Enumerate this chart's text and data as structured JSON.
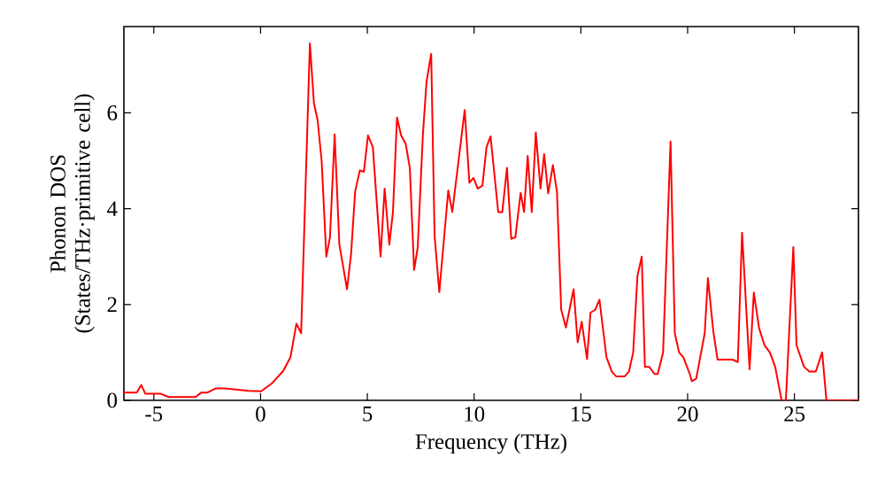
{
  "chart_data": {
    "type": "line",
    "xlabel": "Frequency (THz)",
    "ylabel": "Phonon DOS (States/THz·primitive cell)",
    "xlim": [
      -6.4,
      28
    ],
    "ylim": [
      0,
      7.8
    ],
    "xticks": [
      -5,
      0,
      5,
      10,
      15,
      20,
      25
    ],
    "yticks": [
      0,
      2,
      4,
      6
    ],
    "series": [
      {
        "color": "#ff0000",
        "x": [
          -6.4,
          -6.23,
          -5.8,
          -5.59,
          -5.4,
          -4.7,
          -4.3,
          -3.05,
          -2.78,
          -2.5,
          -2.09,
          -1.68,
          -0.58,
          0.03,
          0.52,
          1.07,
          1.4,
          1.68,
          1.9,
          2.31,
          2.5,
          2.67,
          2.86,
          3.08,
          3.25,
          3.47,
          3.69,
          4.05,
          4.24,
          4.43,
          4.65,
          4.84,
          5.03,
          5.2,
          5.26,
          5.62,
          5.81,
          6.03,
          6.2,
          6.39,
          6.58,
          6.8,
          6.99,
          7.19,
          7.36,
          7.6,
          7.77,
          7.99,
          8.15,
          8.37,
          8.79,
          8.98,
          9.56,
          9.78,
          9.97,
          10.17,
          10.39,
          10.58,
          10.77,
          11.13,
          11.32,
          11.54,
          11.74,
          11.93,
          12.18,
          12.34,
          12.51,
          12.7,
          12.89,
          13.11,
          13.28,
          13.47,
          13.69,
          13.88,
          14.08,
          14.3,
          14.66,
          14.85,
          15.04,
          15.29,
          15.45,
          15.67,
          15.87,
          16.2,
          16.45,
          16.65,
          17.05,
          17.25,
          17.45,
          17.65,
          17.85,
          18.0,
          18.2,
          18.45,
          18.6,
          18.85,
          19.2,
          19.4,
          19.6,
          19.8,
          20.1,
          20.2,
          20.4,
          20.8,
          20.95,
          21.2,
          21.4,
          21.7,
          22.1,
          22.35,
          22.55,
          22.9,
          23.1,
          23.35,
          23.6,
          23.85,
          24.1,
          24.4,
          24.6,
          24.95,
          25.1,
          25.45,
          25.7,
          26.0,
          26.3,
          26.5,
          28
        ],
        "values": [
          0.16,
          0.16,
          0.16,
          0.32,
          0.14,
          0.14,
          0.07,
          0.07,
          0.16,
          0.16,
          0.25,
          0.25,
          0.2,
          0.19,
          0.35,
          0.62,
          0.9,
          1.6,
          1.4,
          7.45,
          6.2,
          5.85,
          5.0,
          3.0,
          3.4,
          5.55,
          3.25,
          2.32,
          3.06,
          4.36,
          4.8,
          4.77,
          5.53,
          5.35,
          5.28,
          3.0,
          4.42,
          3.25,
          3.93,
          5.9,
          5.53,
          5.35,
          4.85,
          2.72,
          3.19,
          5.53,
          6.64,
          7.23,
          3.43,
          2.26,
          4.38,
          3.93,
          6.06,
          4.54,
          4.64,
          4.42,
          4.48,
          5.28,
          5.51,
          3.93,
          3.93,
          4.85,
          3.37,
          3.4,
          4.33,
          3.93,
          5.1,
          3.93,
          5.59,
          4.42,
          5.14,
          4.32,
          4.91,
          4.36,
          1.89,
          1.52,
          2.32,
          1.21,
          1.64,
          0.86,
          1.83,
          1.89,
          2.1,
          0.9,
          0.6,
          0.5,
          0.5,
          0.6,
          1.0,
          2.6,
          3.0,
          0.7,
          0.7,
          0.55,
          0.55,
          1.0,
          5.4,
          1.4,
          1.0,
          0.9,
          0.55,
          0.4,
          0.45,
          1.4,
          2.55,
          1.45,
          0.85,
          0.85,
          0.85,
          0.8,
          3.5,
          0.65,
          2.25,
          1.5,
          1.15,
          1.0,
          0.7,
          0.0,
          0.0,
          3.2,
          1.15,
          0.7,
          0.6,
          0.6,
          1.0,
          0.0,
          0.0
        ]
      }
    ]
  }
}
